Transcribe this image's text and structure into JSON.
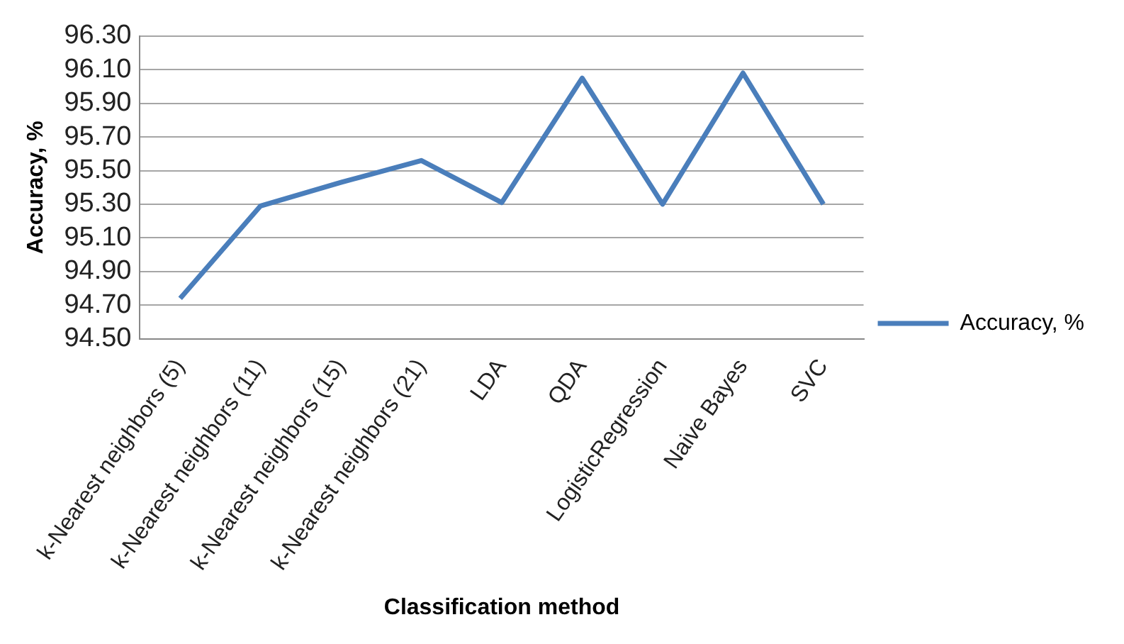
{
  "chart_data": {
    "type": "line",
    "xlabel": "Classification method",
    "ylabel": "Accuracy, %",
    "categories": [
      "k-Nearest neighbors (5)",
      "k-Nearest neighbors (11)",
      "k-Nearest neighbors (15)",
      "k-Nearest neighbors (21)",
      "LDA",
      "QDA",
      "LogisticRegression",
      "Naive Bayes",
      "SVC"
    ],
    "series": [
      {
        "name": "Accuracy, %",
        "color": "#4a7ebb",
        "values": [
          94.74,
          95.29,
          95.43,
          95.56,
          95.31,
          96.05,
          95.3,
          96.08,
          95.3
        ]
      }
    ],
    "ylim": [
      94.5,
      96.3
    ],
    "yticks": [
      {
        "value": 94.5,
        "label": "94.50"
      },
      {
        "value": 94.7,
        "label": "94.70"
      },
      {
        "value": 94.9,
        "label": "94.90"
      },
      {
        "value": 95.1,
        "label": "95.10"
      },
      {
        "value": 95.3,
        "label": "95.30"
      },
      {
        "value": 95.5,
        "label": "95.50"
      },
      {
        "value": 95.7,
        "label": "95.70"
      },
      {
        "value": 95.9,
        "label": "95.90"
      },
      {
        "value": 96.1,
        "label": "96.10"
      },
      {
        "value": 96.3,
        "label": "96.30"
      }
    ],
    "grid": "y",
    "legend": "right",
    "marker": "none",
    "line_style": "solid"
  }
}
